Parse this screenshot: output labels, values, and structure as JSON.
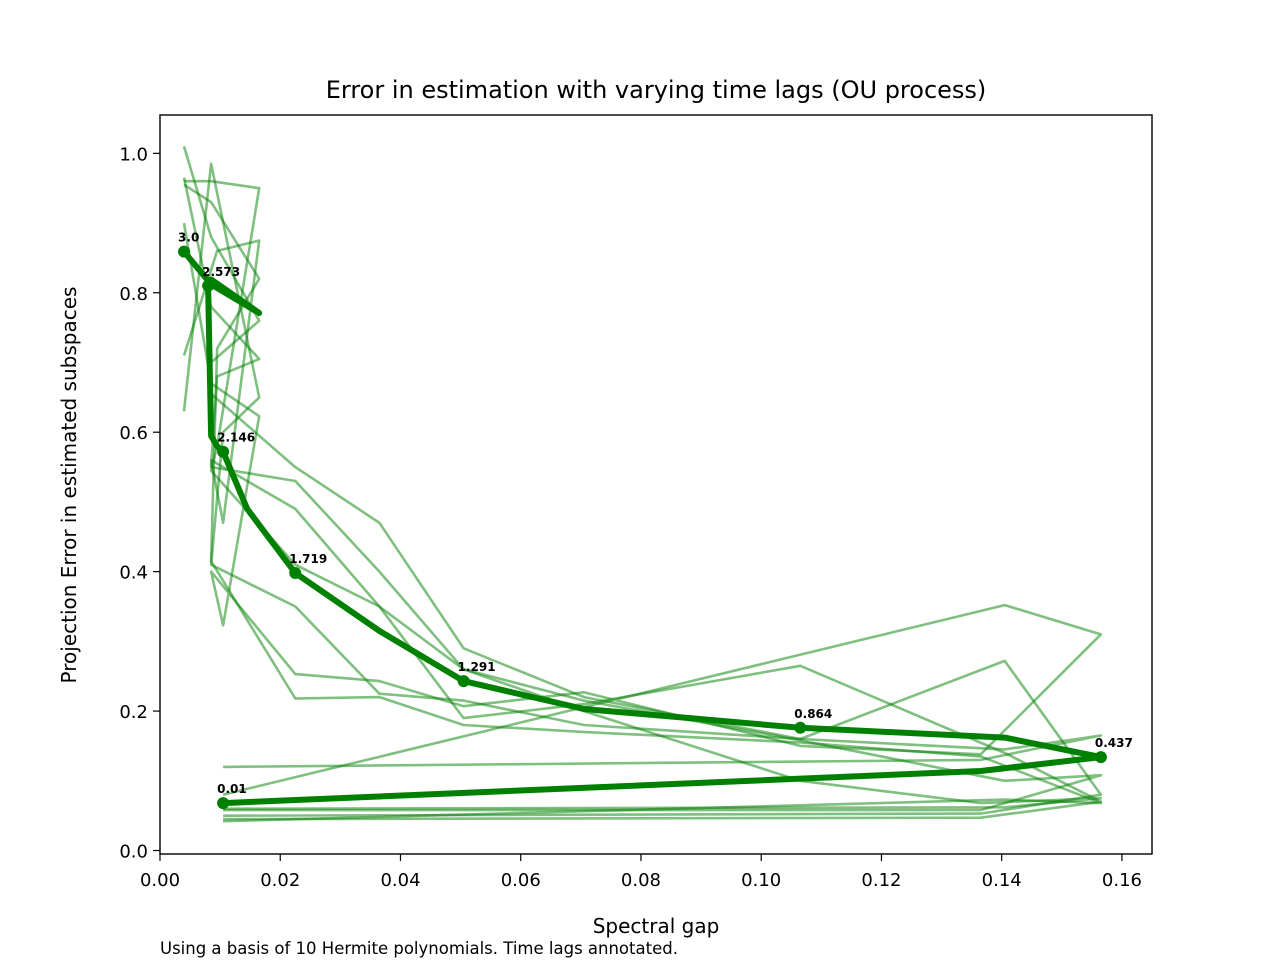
{
  "chart_data": {
    "type": "line",
    "title": "Error in estimation with varying time lags (OU process)",
    "xlabel": "Spectral gap",
    "ylabel": "Projection Error in estimated subspaces",
    "xlim": [
      0.0,
      0.165
    ],
    "ylim": [
      -0.005,
      1.055
    ],
    "xticks": [
      "0.00",
      "0.02",
      "0.04",
      "0.06",
      "0.08",
      "0.10",
      "0.12",
      "0.14",
      "0.16"
    ],
    "yticks": [
      "0.0",
      "0.2",
      "0.4",
      "0.6",
      "0.8",
      "1.0"
    ],
    "grid": false,
    "color": "#008000",
    "caption": "Using a basis of 10 Hermite polynomials. Time lags annotated.",
    "main_series": {
      "x": [
        0.0105,
        0.1365,
        0.1565,
        0.1405,
        0.1065,
        0.0905,
        0.0705,
        0.0505,
        0.0365,
        0.0225,
        0.0145,
        0.0105,
        0.0095,
        0.0085,
        0.008,
        0.0085,
        0.0165,
        0.0085,
        0.004
      ],
      "y": [
        0.068,
        0.114,
        0.134,
        0.162,
        0.176,
        0.188,
        0.203,
        0.243,
        0.315,
        0.398,
        0.49,
        0.572,
        0.58,
        0.595,
        0.81,
        0.819,
        0.771,
        0.812,
        0.859
      ]
    },
    "annotations": [
      {
        "text": "0.01",
        "x": 0.0105,
        "y": 0.068
      },
      {
        "text": "0.437",
        "x": 0.1565,
        "y": 0.134
      },
      {
        "text": "0.864",
        "x": 0.1065,
        "y": 0.176
      },
      {
        "text": "1.291",
        "x": 0.0505,
        "y": 0.243
      },
      {
        "text": "1.719",
        "x": 0.0225,
        "y": 0.398
      },
      {
        "text": "2.146",
        "x": 0.0105,
        "y": 0.572
      },
      {
        "text": "2.573",
        "x": 0.008,
        "y": 0.81
      },
      {
        "text": "3.0",
        "x": 0.004,
        "y": 0.859
      }
    ],
    "faint_series": [
      {
        "x": [
          0.0105,
          0.1365,
          0.1565,
          0.1405,
          0.1065,
          0.0705,
          0.0505,
          0.0365,
          0.0225,
          0.0085,
          0.0085,
          0.0165,
          0.0085,
          0.004
        ],
        "y": [
          0.12,
          0.13,
          0.165,
          0.145,
          0.16,
          0.22,
          0.29,
          0.47,
          0.55,
          0.655,
          0.7,
          0.76,
          0.88,
          1.01
        ]
      },
      {
        "x": [
          0.0105,
          0.1405,
          0.1565,
          0.1365,
          0.1065,
          0.0705,
          0.0505,
          0.0365,
          0.0225,
          0.0085,
          0.0095,
          0.0165,
          0.0085,
          0.004
        ],
        "y": [
          0.06,
          0.062,
          0.075,
          0.068,
          0.1,
          0.2,
          0.26,
          0.4,
          0.53,
          0.55,
          0.68,
          0.705,
          0.78,
          0.965
        ]
      },
      {
        "x": [
          0.0105,
          0.1365,
          0.1565,
          0.1405,
          0.1065,
          0.0705,
          0.0505,
          0.0365,
          0.0225,
          0.0085,
          0.0105,
          0.0165,
          0.0095,
          0.004
        ],
        "y": [
          0.045,
          0.047,
          0.07,
          0.14,
          0.265,
          0.21,
          0.19,
          0.35,
          0.49,
          0.56,
          0.47,
          0.875,
          0.86,
          0.71
        ]
      },
      {
        "x": [
          0.0105,
          0.1365,
          0.1565,
          0.1405,
          0.1065,
          0.0705,
          0.0505,
          0.0365,
          0.0225,
          0.0085,
          0.0105,
          0.0165,
          0.0085,
          0.004
        ],
        "y": [
          0.05,
          0.053,
          0.08,
          0.272,
          0.16,
          0.18,
          0.215,
          0.225,
          0.35,
          0.41,
          0.6,
          0.65,
          0.985,
          0.63
        ]
      },
      {
        "x": [
          0.0105,
          0.1405,
          0.1565,
          0.1365,
          0.1065,
          0.0705,
          0.0505,
          0.0365,
          0.0225,
          0.0085,
          0.0095,
          0.0165,
          0.0085,
          0.004
        ],
        "y": [
          0.042,
          0.073,
          0.068,
          0.135,
          0.155,
          0.17,
          0.18,
          0.22,
          0.218,
          0.415,
          0.72,
          0.82,
          0.93,
          0.955
        ]
      },
      {
        "x": [
          0.0105,
          0.1405,
          0.1565,
          0.1365,
          0.1065,
          0.0705,
          0.0505,
          0.0365,
          0.0225,
          0.0085,
          0.0105,
          0.0165,
          0.0085,
          0.004
        ],
        "y": [
          0.08,
          0.352,
          0.31,
          0.138,
          0.15,
          0.227,
          0.207,
          0.243,
          0.253,
          0.4,
          0.323,
          0.623,
          0.67,
          0.9
        ]
      },
      {
        "x": [
          0.0105,
          0.1365,
          0.1565,
          0.1405,
          0.1065,
          0.0705,
          0.0505,
          0.0365,
          0.0225,
          0.0085,
          0.0095,
          0.0165,
          0.0085,
          0.004
        ],
        "y": [
          0.058,
          0.058,
          0.108,
          0.1,
          0.158,
          0.215,
          0.26,
          0.35,
          0.41,
          0.545,
          0.58,
          0.95,
          0.96,
          0.96
        ]
      }
    ]
  }
}
